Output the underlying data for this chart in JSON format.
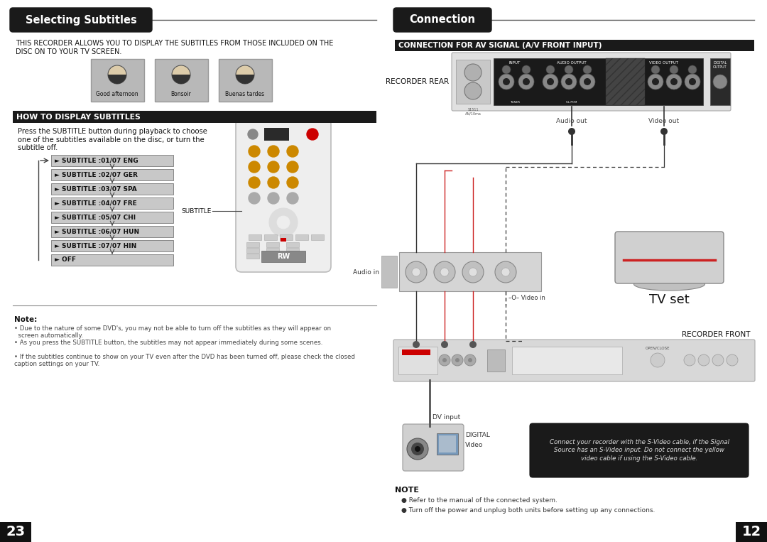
{
  "bg_color": "#ffffff",
  "title_left": "Selecting Subtitles",
  "title_right": "Connection",
  "title_bg": "#1a1a1a",
  "title_fg": "#ffffff",
  "section_bar_bg": "#1a1a1a",
  "section_bar_fg": "#ffffff",
  "left_section_bar": "HOW TO DISPLAY SUBTITLES",
  "right_section_bar": "CONNECTION FOR AV SIGNAL (A/V FRONT INPUT)",
  "intro_text": "THIS RECORDER ALLOWS YOU TO DISPLAY THE SUBTITLES FROM THOSE INCLUDED ON THE\nDISC ON TO YOUR TV SCREEN.",
  "press_text": "Press the SUBTITLE button during playback to choose\none of the subtitles available on the disc, or turn the\nsubtitle off.",
  "subtitle_items": [
    "► SUBTITLE :01/07 ENG",
    "► SUBTITLE :02/07 GER",
    "► SUBTITLE :03/07 SPA",
    "► SUBTITLE :04/07 FRE",
    "► SUBTITLE :05/07 CHI",
    "► SUBTITLE :06/07 HUN",
    "► SUBTITLE :07/07 HIN",
    "► OFF"
  ],
  "subtitle_label": "SUBTITLE",
  "note_title": "Note:",
  "note_lines": [
    "• Due to the nature of some DVD's, you may not be able to turn off the subtitles as they will appear on\n  screen automatically.",
    "• As you press the SUBTITLE button, the subtitles may not appear immediately during some scenes.",
    "• If the subtitles continue to show on your TV even after the DVD has been turned off, please check the closed\ncaption settings on your TV."
  ],
  "page_left": "23",
  "page_right": "12",
  "recorder_rear_label": "RECORDER REAR",
  "audio_out_label": "Audio out",
  "video_out_label": "Video out",
  "tv_set_label": "TV set",
  "recorder_front_label": "RECORDER FRONT",
  "audio_in_label": "Audio in",
  "video_in_label": "Video in",
  "dv_input_label": "DV input",
  "digital_label": "DIGITAL",
  "video_label": "Video",
  "note_right_title": "NOTE",
  "note_right_lines": [
    "● Refer to the manual of the connected system.",
    "● Turn off the power and unplug both units before setting up any connections."
  ],
  "camcorder_note": "Connect your recorder with the S-Video cable, if the Signal\nSource has an S-Video input. Do not connect the yellow\nvideo cable if using the S-Video cable.",
  "subtitle_box_bg": "#c8c8c8",
  "subtitle_box_border": "#888888",
  "caption_images": [
    "Good afternoon",
    "Bonsoir",
    "Buenas tardes"
  ]
}
